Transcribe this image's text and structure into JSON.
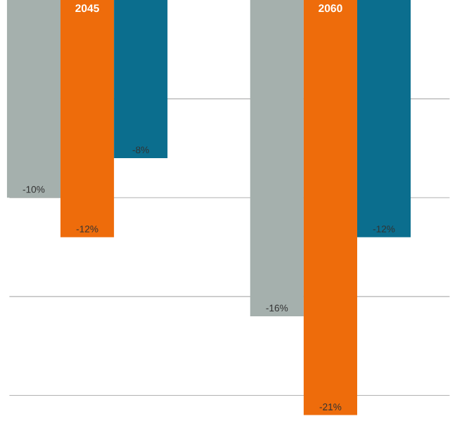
{
  "chart_data": {
    "type": "bar",
    "categories": [
      "2045",
      "2060"
    ],
    "series": [
      {
        "color": "#a5b0ad",
        "values": [
          -10,
          -16
        ],
        "value_labels": [
          "-10%",
          "-16%"
        ]
      },
      {
        "color": "#ee6c0b",
        "values": [
          -12,
          -21
        ],
        "value_labels": [
          "-12%",
          "-21%"
        ]
      },
      {
        "color": "#0b6e8e",
        "values": [
          -8,
          -12
        ],
        "value_labels": [
          "-8%",
          "-12%"
        ]
      }
    ],
    "yticks": [
      -20,
      -15,
      -10,
      -5
    ],
    "grid": "y",
    "tick_labels": "x"
  }
}
